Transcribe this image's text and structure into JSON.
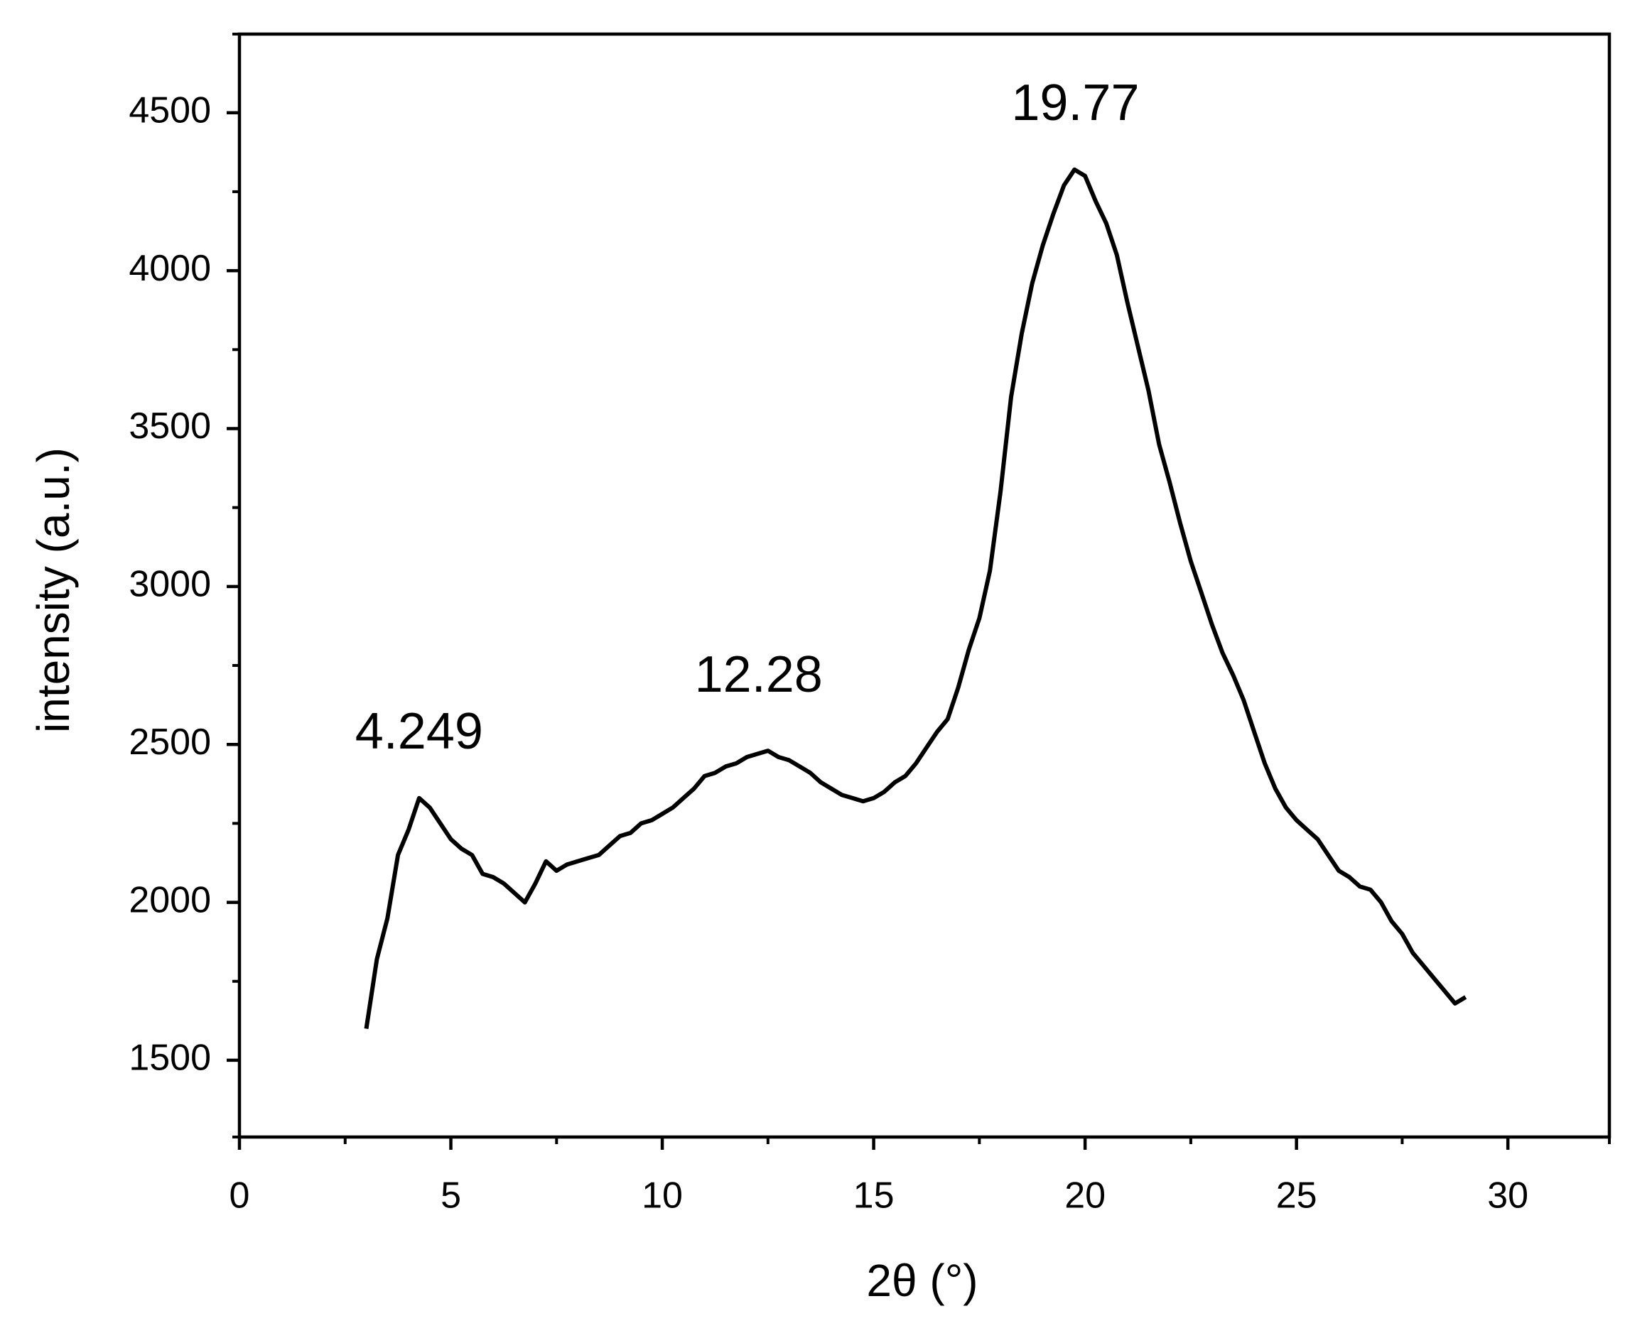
{
  "chart_data": {
    "type": "line",
    "xlabel": "2θ (°)",
    "ylabel": "intensity (a.u.)",
    "xlim": [
      0,
      32.4
    ],
    "ylim": [
      1257,
      4749
    ],
    "xticks": [
      0,
      5,
      10,
      15,
      20,
      25,
      30
    ],
    "xminorticks": [
      2.5,
      7.5,
      12.5,
      17.5,
      22.5,
      27.5,
      32.5
    ],
    "yticks": [
      1500,
      2000,
      2500,
      3000,
      3500,
      4000,
      4500
    ],
    "yminorticks": [
      1250,
      1750,
      2250,
      2750,
      3250,
      3750,
      4250,
      4750
    ],
    "annotations": [
      {
        "text": "4.249",
        "x": 4.249,
        "y": 2530
      },
      {
        "text": "12.28",
        "x": 12.28,
        "y": 2710
      },
      {
        "text": "19.77",
        "x": 19.77,
        "y": 4520
      }
    ],
    "x": [
      3.0,
      3.25,
      3.5,
      3.75,
      4.0,
      4.25,
      4.5,
      4.75,
      5.0,
      5.25,
      5.5,
      5.75,
      6.0,
      6.25,
      6.5,
      6.75,
      7.0,
      7.25,
      7.5,
      7.75,
      8.0,
      8.25,
      8.5,
      8.75,
      9.0,
      9.25,
      9.5,
      9.75,
      10.0,
      10.25,
      10.5,
      10.75,
      11.0,
      11.25,
      11.5,
      11.75,
      12.0,
      12.25,
      12.5,
      12.75,
      13.0,
      13.25,
      13.5,
      13.75,
      14.0,
      14.25,
      14.5,
      14.75,
      15.0,
      15.25,
      15.5,
      15.75,
      16.0,
      16.25,
      16.5,
      16.75,
      17.0,
      17.25,
      17.5,
      17.75,
      18.0,
      18.25,
      18.5,
      18.75,
      19.0,
      19.25,
      19.5,
      19.75,
      20.0,
      20.25,
      20.5,
      20.75,
      21.0,
      21.25,
      21.5,
      21.75,
      22.0,
      22.25,
      22.5,
      22.75,
      23.0,
      23.25,
      23.5,
      23.75,
      24.0,
      24.25,
      24.5,
      24.75,
      25.0,
      25.25,
      25.5,
      25.75,
      26.0,
      26.25,
      26.5,
      26.75,
      27.0,
      27.25,
      27.5,
      27.75,
      28.0,
      28.25,
      28.5,
      28.75,
      29.0
    ],
    "series": [
      {
        "name": "intensity",
        "color": "#000000",
        "values": [
          1600,
          1820,
          1950,
          2150,
          2230,
          2330,
          2300,
          2250,
          2200,
          2170,
          2150,
          2090,
          2080,
          2060,
          2030,
          2000,
          2060,
          2130,
          2100,
          2120,
          2130,
          2140,
          2150,
          2180,
          2210,
          2220,
          2250,
          2260,
          2280,
          2300,
          2330,
          2360,
          2400,
          2410,
          2430,
          2440,
          2460,
          2470,
          2480,
          2460,
          2450,
          2430,
          2410,
          2380,
          2360,
          2340,
          2330,
          2320,
          2330,
          2350,
          2380,
          2400,
          2440,
          2490,
          2540,
          2580,
          2680,
          2800,
          2900,
          3050,
          3300,
          3600,
          3800,
          3960,
          4080,
          4180,
          4270,
          4320,
          4300,
          4220,
          4150,
          4050,
          3900,
          3760,
          3620,
          3450,
          3330,
          3200,
          3080,
          2980,
          2880,
          2790,
          2720,
          2640,
          2540,
          2440,
          2360,
          2300,
          2260,
          2230,
          2200,
          2150,
          2100,
          2080,
          2050,
          2040,
          2000,
          1940,
          1900,
          1840,
          1800,
          1760,
          1720,
          1680,
          1700
        ]
      }
    ]
  }
}
